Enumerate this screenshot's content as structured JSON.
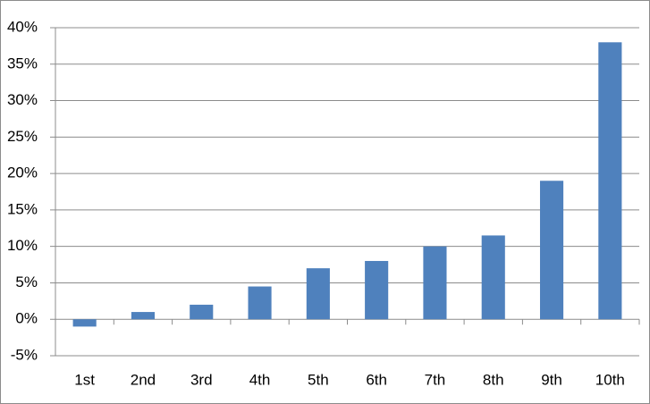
{
  "chart_data": {
    "type": "bar",
    "categories": [
      "1st",
      "2nd",
      "3rd",
      "4th",
      "5th",
      "6th",
      "7th",
      "8th",
      "9th",
      "10th"
    ],
    "values": [
      -1,
      1,
      2,
      4.5,
      7,
      8,
      10,
      11.5,
      19,
      38
    ],
    "color": "#4f81bd",
    "ylim": [
      -5,
      40
    ],
    "yticks": [
      {
        "value": -5,
        "label": "-5%"
      },
      {
        "value": 0,
        "label": "0%"
      },
      {
        "value": 5,
        "label": "5%"
      },
      {
        "value": 10,
        "label": "10%"
      },
      {
        "value": 15,
        "label": "15%"
      },
      {
        "value": 20,
        "label": "20%"
      },
      {
        "value": 25,
        "label": "25%"
      },
      {
        "value": 30,
        "label": "30%"
      },
      {
        "value": 35,
        "label": "35%"
      },
      {
        "value": 40,
        "label": "40%"
      }
    ],
    "grid": true
  }
}
